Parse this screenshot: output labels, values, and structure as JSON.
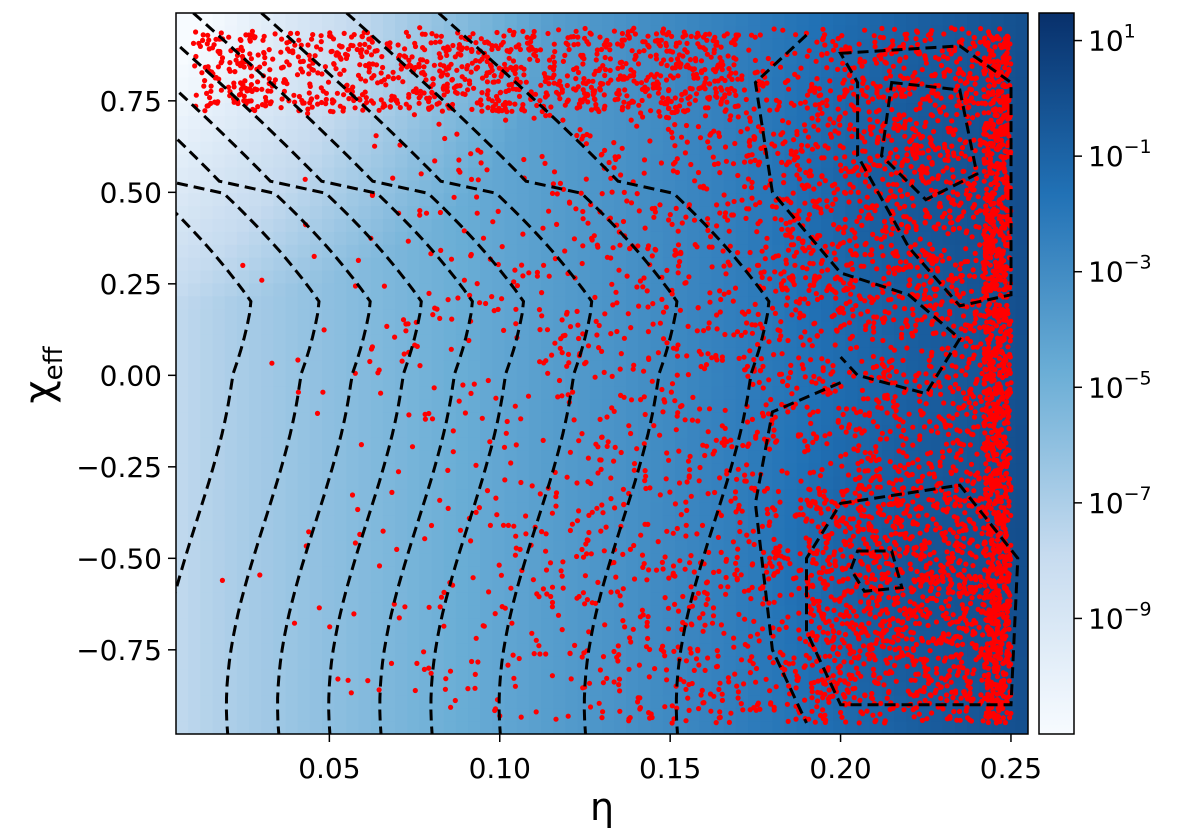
{
  "chart_data": {
    "type": "heatmap",
    "subtype": "density heatmap with scatter overlay and dashed contour lines",
    "xlabel": "η",
    "ylabel": "χ",
    "ylabel_subscript": "eff",
    "xlim": [
      0.005,
      0.255
    ],
    "ylim": [
      -0.98,
      0.99
    ],
    "x_ticks": [
      0.05,
      0.1,
      0.15,
      0.2,
      0.25
    ],
    "x_tick_labels": [
      "0.05",
      "0.10",
      "0.15",
      "0.20",
      "0.25"
    ],
    "y_ticks": [
      0.75,
      0.5,
      0.25,
      0.0,
      -0.25,
      -0.5,
      -0.75
    ],
    "y_tick_labels": [
      "0.75",
      "0.50",
      "0.25",
      "0.00",
      "−0.25",
      "−0.50",
      "−0.75"
    ],
    "grid": false,
    "colormap": "Blues",
    "colorbar": {
      "scale": "log",
      "range": [
        1e-11,
        30
      ],
      "ticks": [
        10,
        0.1,
        0.001,
        1e-05,
        1e-07,
        1e-09
      ],
      "tick_base": [
        "10",
        "10",
        "10",
        "10",
        "10",
        "10"
      ],
      "tick_exponents": [
        "1",
        "−1",
        "−3",
        "−5",
        "−7",
        "−9"
      ]
    },
    "scatter": {
      "color": "#ff0000",
      "description_points_sample_size": 3500,
      "x_range": [
        0.01,
        0.25
      ],
      "y_range": [
        -0.95,
        0.95
      ]
    },
    "contour_color": "#000000",
    "contour_style": "dashed"
  }
}
